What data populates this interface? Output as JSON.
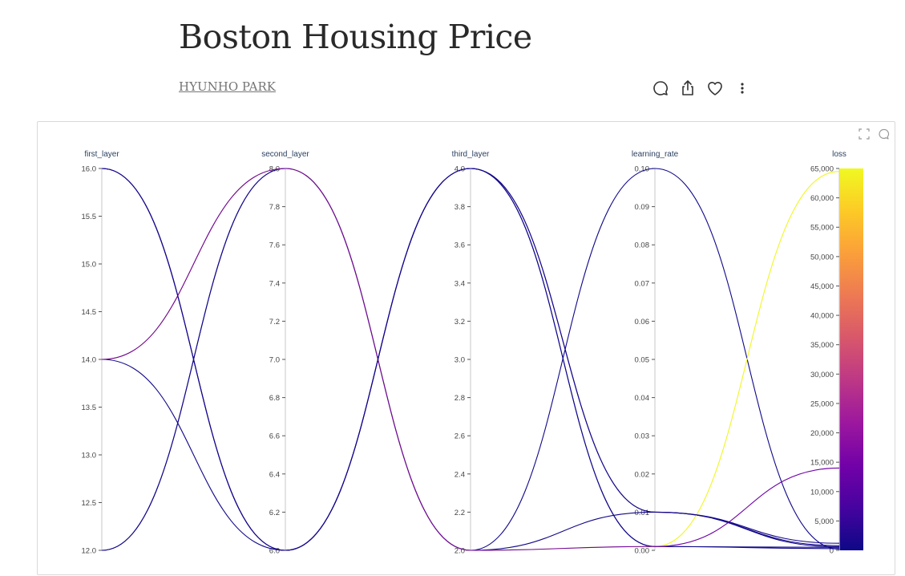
{
  "article": {
    "title": "Boston Housing Price",
    "author": "HYUNHO PARK"
  },
  "icons": {
    "comment": "comment-icon",
    "share": "share-icon",
    "like": "heart-icon",
    "more": "more-icon",
    "fullscreen": "fullscreen-icon",
    "panel_comment": "comment-icon"
  },
  "chart_data": {
    "type": "parallel_coordinates",
    "title": "",
    "dimensions": [
      {
        "name": "first_layer",
        "range": [
          12,
          16
        ],
        "ticks": [
          "12.0",
          "12.5",
          "13.0",
          "13.5",
          "14.0",
          "14.5",
          "15.0",
          "15.5",
          "16.0"
        ]
      },
      {
        "name": "second_layer",
        "range": [
          6,
          8
        ],
        "ticks": [
          "6.0",
          "6.2",
          "6.4",
          "6.6",
          "6.8",
          "7.0",
          "7.2",
          "7.4",
          "7.6",
          "7.8",
          "8.0"
        ]
      },
      {
        "name": "third_layer",
        "range": [
          2,
          4
        ],
        "ticks": [
          "2.0",
          "2.2",
          "2.4",
          "2.6",
          "2.8",
          "3.0",
          "3.2",
          "3.4",
          "3.6",
          "3.8",
          "4.0"
        ]
      },
      {
        "name": "learning_rate",
        "range": [
          0,
          0.1
        ],
        "ticks": [
          "0.00",
          "0.01",
          "0.02",
          "0.03",
          "0.04",
          "0.05",
          "0.06",
          "0.07",
          "0.08",
          "0.09",
          "0.10"
        ]
      },
      {
        "name": "loss",
        "range": [
          0,
          65000
        ],
        "ticks": [
          "0",
          "5,000",
          "10,000",
          "15,000",
          "20,000",
          "25,000",
          "30,000",
          "35,000",
          "40,000",
          "45,000",
          "50,000",
          "55,000",
          "60,000",
          "65,000"
        ]
      }
    ],
    "colorscale": [
      "#0d0887",
      "#46039f",
      "#7201a8",
      "#9c179e",
      "#bd3786",
      "#d8576b",
      "#ed7953",
      "#fb9f3a",
      "#fdca26",
      "#f0f921"
    ],
    "color_by": "loss",
    "lines": [
      [
        16,
        6,
        4,
        0.001,
        300
      ],
      [
        16,
        6,
        4,
        0.01,
        800
      ],
      [
        12,
        8,
        2,
        0.1,
        200
      ],
      [
        12,
        8,
        2,
        0.01,
        600
      ],
      [
        14,
        8,
        2,
        0.001,
        64500
      ],
      [
        14,
        6,
        4,
        0.001,
        500
      ],
      [
        14,
        8,
        2,
        0.001,
        14000
      ],
      [
        16,
        6,
        4,
        0.01,
        1200
      ]
    ]
  }
}
